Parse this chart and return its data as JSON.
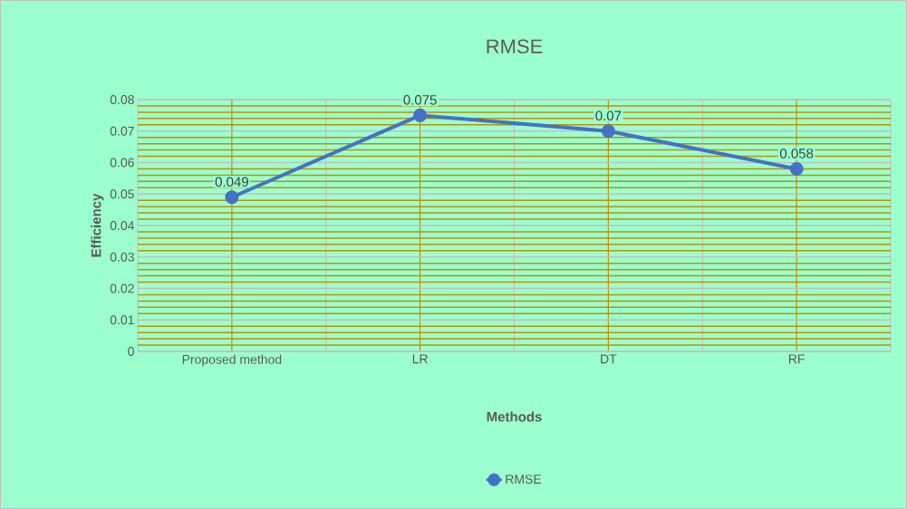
{
  "chart_data": {
    "type": "line",
    "title": "RMSE",
    "xlabel": "Methods",
    "ylabel": "Efficiency",
    "categories": [
      "Proposed method",
      "LR",
      "DT",
      "RF"
    ],
    "series": [
      {
        "name": "RMSE",
        "color": "#4472c4",
        "values": [
          0.049,
          0.075,
          0.07,
          0.058
        ]
      }
    ],
    "ylim": [
      0,
      0.08
    ],
    "yticks": [
      0,
      {
        "value": 0.002,
        "label": null
      },
      {
        "value": 0.004,
        "label": null
      },
      {
        "value": 0.006,
        "label": null
      },
      {
        "value": 0.008,
        "label": null
      },
      0.01,
      {
        "value": 0.012,
        "label": null
      },
      {
        "value": 0.014,
        "label": null
      },
      {
        "value": 0.016,
        "label": null
      },
      {
        "value": 0.018,
        "label": null
      },
      0.02,
      {
        "value": 0.022,
        "label": null
      },
      {
        "value": 0.024,
        "label": null
      },
      {
        "value": 0.026,
        "label": null
      },
      {
        "value": 0.028,
        "label": null
      },
      0.03,
      {
        "value": 0.032,
        "label": null
      },
      {
        "value": 0.034,
        "label": null
      },
      {
        "value": 0.036,
        "label": null
      },
      {
        "value": 0.038,
        "label": null
      },
      0.04,
      {
        "value": 0.042,
        "label": null
      },
      {
        "value": 0.044,
        "label": null
      },
      {
        "value": 0.046,
        "label": null
      },
      {
        "value": 0.048,
        "label": null
      },
      0.05,
      {
        "value": 0.052,
        "label": null
      },
      {
        "value": 0.054,
        "label": null
      },
      {
        "value": 0.056,
        "label": null
      },
      {
        "value": 0.058,
        "label": null
      },
      0.06,
      {
        "value": 0.062,
        "label": null
      },
      {
        "value": 0.064,
        "label": null
      },
      {
        "value": 0.066,
        "label": null
      },
      {
        "value": 0.068,
        "label": null
      },
      0.07,
      {
        "value": 0.072,
        "label": null
      },
      {
        "value": 0.074,
        "label": null
      },
      {
        "value": 0.076,
        "label": null
      },
      {
        "value": 0.078,
        "label": null
      },
      0.08
    ],
    "grid": true,
    "legend": "bottom",
    "marker": "circle",
    "line_style": "solid",
    "data_labels": true
  }
}
